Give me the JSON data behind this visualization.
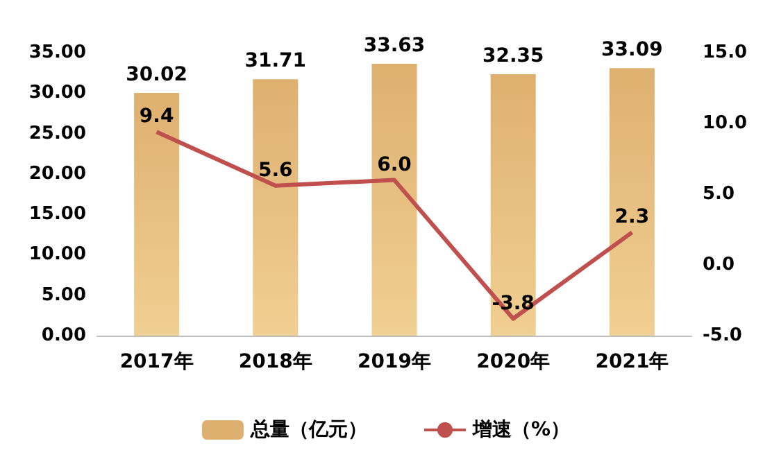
{
  "chart_data": {
    "type": "bar",
    "categories": [
      "2017年",
      "2018年",
      "2019年",
      "2020年",
      "2021年"
    ],
    "series": [
      {
        "name": "总量（亿元）",
        "color": "#deb070",
        "values": [
          30.02,
          31.71,
          33.63,
          32.35,
          33.09
        ]
      },
      {
        "name": "增速（%）",
        "type": "line",
        "axis": "y2",
        "color": "#c0504d",
        "values": [
          9.4,
          5.6,
          6.0,
          -3.8,
          2.3
        ],
        "value_labels": [
          "9.4",
          "5.6",
          "6.0",
          "-3.8",
          "2.3"
        ]
      }
    ],
    "ylim": [
      0,
      35
    ],
    "yticks": [
      {
        "value": 0,
        "label": "0.00"
      },
      {
        "value": 5,
        "label": "5.00"
      },
      {
        "value": 10,
        "label": "10.00"
      },
      {
        "value": 15,
        "label": "15.00"
      },
      {
        "value": 20,
        "label": "20.00"
      },
      {
        "value": 25,
        "label": "25.00"
      },
      {
        "value": 30,
        "label": "30.00"
      },
      {
        "value": 35,
        "label": "35.00"
      }
    ],
    "y2lim": [
      -5,
      15
    ],
    "y2ticks": [
      {
        "value": -5,
        "label": "-5.0"
      },
      {
        "value": 0,
        "label": "0.0"
      },
      {
        "value": 5,
        "label": "5.0"
      },
      {
        "value": 10,
        "label": "10.0"
      },
      {
        "value": 15,
        "label": "15.0"
      }
    ],
    "data_labels": true,
    "grid": false,
    "legend": "bottom",
    "marker": "none",
    "line_style": "solid"
  }
}
